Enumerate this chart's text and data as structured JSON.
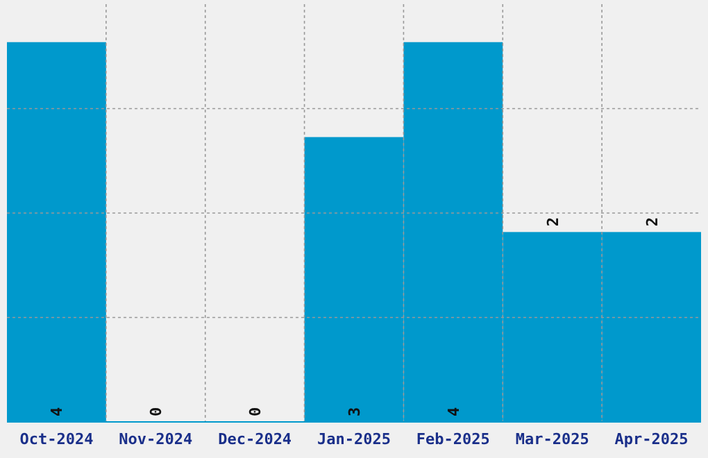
{
  "chart_data": {
    "type": "bar",
    "categories": [
      "Oct-2024",
      "Nov-2024",
      "Dec-2024",
      "Jan-2025",
      "Feb-2025",
      "Mar-2025",
      "Apr-2025"
    ],
    "values": [
      4,
      0,
      0,
      3,
      4,
      2,
      2
    ],
    "color": "#0099cc",
    "ylim": [
      0,
      4.4
    ],
    "yticks": [
      {
        "value": 1.1,
        "label": null
      },
      {
        "value": 2.2,
        "label": null
      },
      {
        "value": 3.3,
        "label": null
      }
    ],
    "tick_labels": "x",
    "grid": true,
    "data_labels": true
  }
}
